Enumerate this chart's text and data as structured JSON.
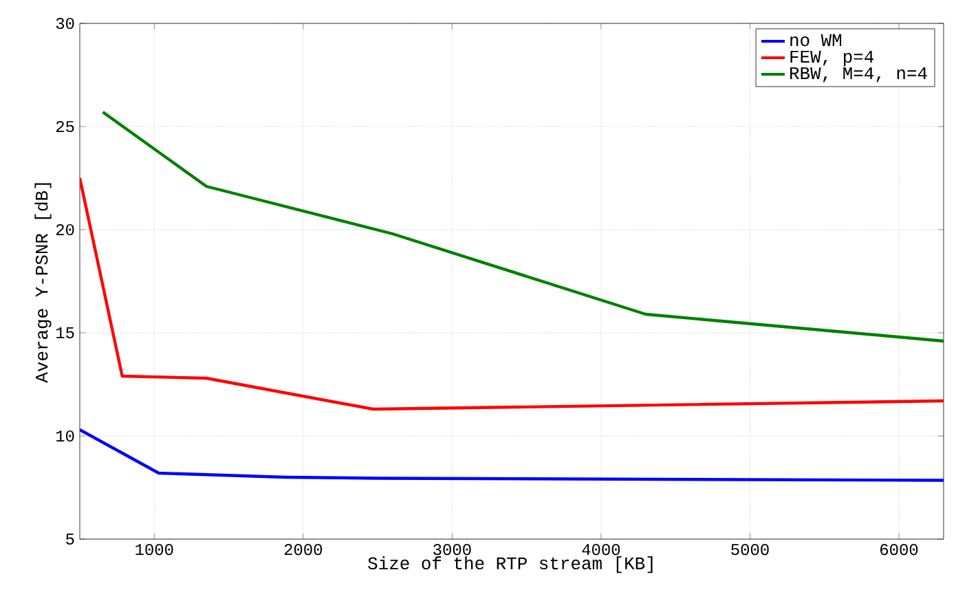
{
  "chart_data": {
    "type": "line",
    "xlabel": "Size of the RTP stream [KB]",
    "ylabel": "Average Y-PSNR [dB]",
    "xlim": [
      500,
      6300
    ],
    "ylim": [
      5,
      30
    ],
    "xticks": [
      1000,
      2000,
      3000,
      4000,
      5000,
      6000
    ],
    "yticks": [
      5,
      10,
      15,
      20,
      25,
      30
    ],
    "grid": true,
    "legend": "top right",
    "line_style": "solid",
    "marker": "none",
    "series": [
      {
        "name": "no WM",
        "color": "#0000ff",
        "x": [
          500,
          1030,
          1880,
          2500,
          6300
        ],
        "values": [
          10.3,
          8.2,
          8.0,
          7.95,
          7.85
        ]
      },
      {
        "name": "FEW, p=4",
        "color": "#ff0000",
        "x": [
          500,
          785,
          1350,
          2470,
          6300
        ],
        "values": [
          22.5,
          12.9,
          12.8,
          11.3,
          11.7
        ]
      },
      {
        "name": "RBW, M=4, n=4",
        "color": "#008000",
        "x": [
          655,
          1350,
          2600,
          4300,
          6300
        ],
        "values": [
          25.7,
          22.1,
          19.8,
          15.9,
          14.6
        ]
      }
    ]
  }
}
